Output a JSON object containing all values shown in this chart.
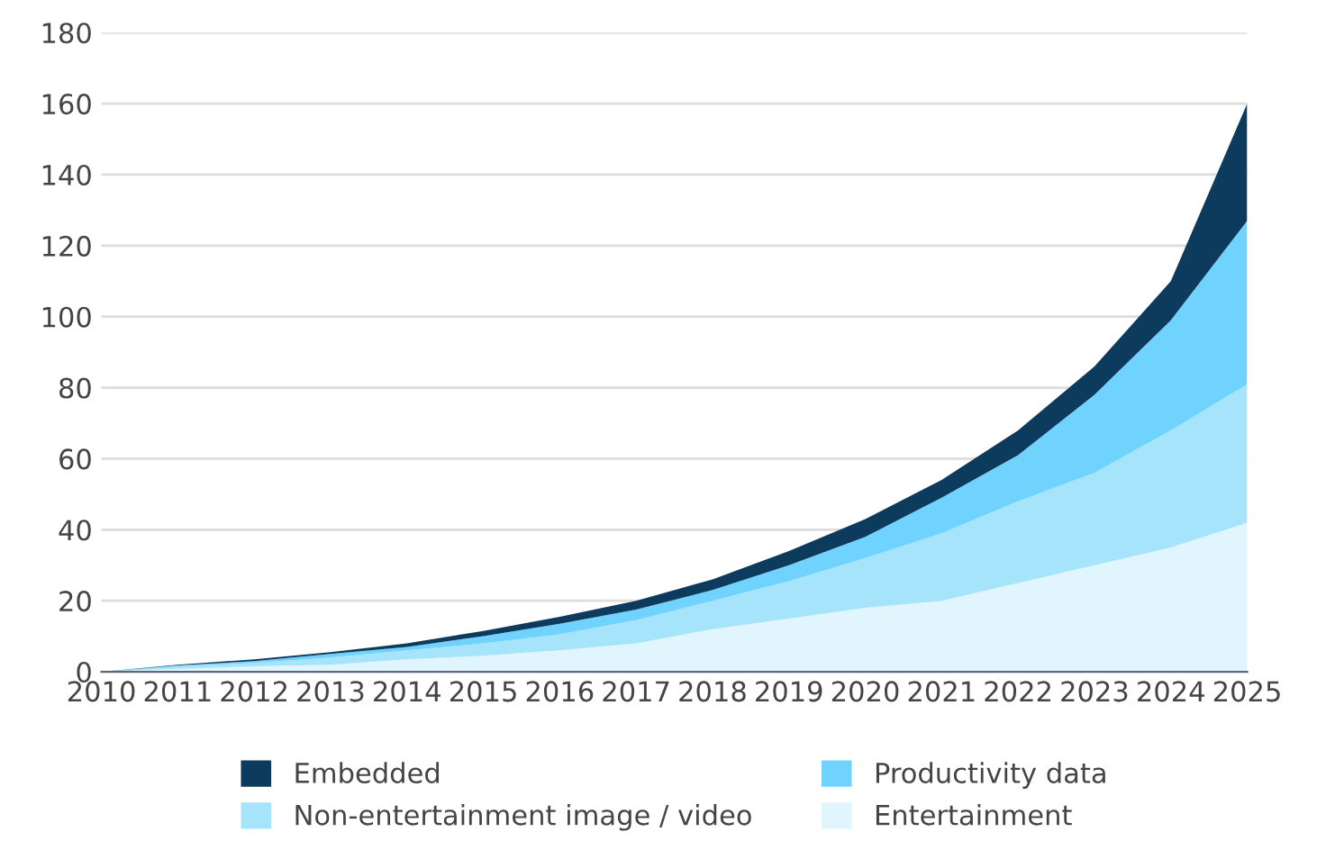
{
  "chart_data": {
    "type": "area",
    "stacked": true,
    "x": [
      2010,
      2011,
      2012,
      2013,
      2014,
      2015,
      2016,
      2017,
      2018,
      2019,
      2020,
      2021,
      2022,
      2023,
      2024,
      2025
    ],
    "series": [
      {
        "name": "Entertainment",
        "color": "#e0f5fe",
        "values": [
          0,
          0.8,
          1.5,
          2,
          3.5,
          4.5,
          6,
          8,
          12,
          15,
          18,
          20,
          25,
          30,
          35,
          42
        ]
      },
      {
        "name": "Non-entertainment image / video",
        "color": "#a6e4fb",
        "values": [
          0,
          0.7,
          1,
          2,
          2.5,
          3.5,
          4.5,
          6.5,
          8,
          10.5,
          14,
          19,
          23,
          26,
          33,
          39
        ]
      },
      {
        "name": "Productivity data",
        "color": "#6fd3fd",
        "values": [
          0,
          0.3,
          0.5,
          1,
          1,
          2,
          3,
          3,
          3,
          4.5,
          6,
          10,
          13,
          22,
          31,
          46
        ]
      },
      {
        "name": "Embedded",
        "color": "#0d3b5e",
        "values": [
          0,
          0.2,
          0.5,
          0.5,
          1,
          1.5,
          2,
          2.5,
          3,
          4,
          5,
          5,
          7,
          8,
          11,
          33
        ]
      }
    ],
    "xlim": [
      2010,
      2025
    ],
    "xticks": [
      2010,
      2011,
      2012,
      2013,
      2014,
      2015,
      2016,
      2017,
      2018,
      2019,
      2020,
      2021,
      2022,
      2023,
      2024,
      2025
    ],
    "ylim": [
      0,
      180
    ],
    "yticks": [
      0,
      20,
      40,
      60,
      80,
      100,
      120,
      140,
      160,
      180
    ],
    "grid": "y",
    "legend": "bottom"
  }
}
